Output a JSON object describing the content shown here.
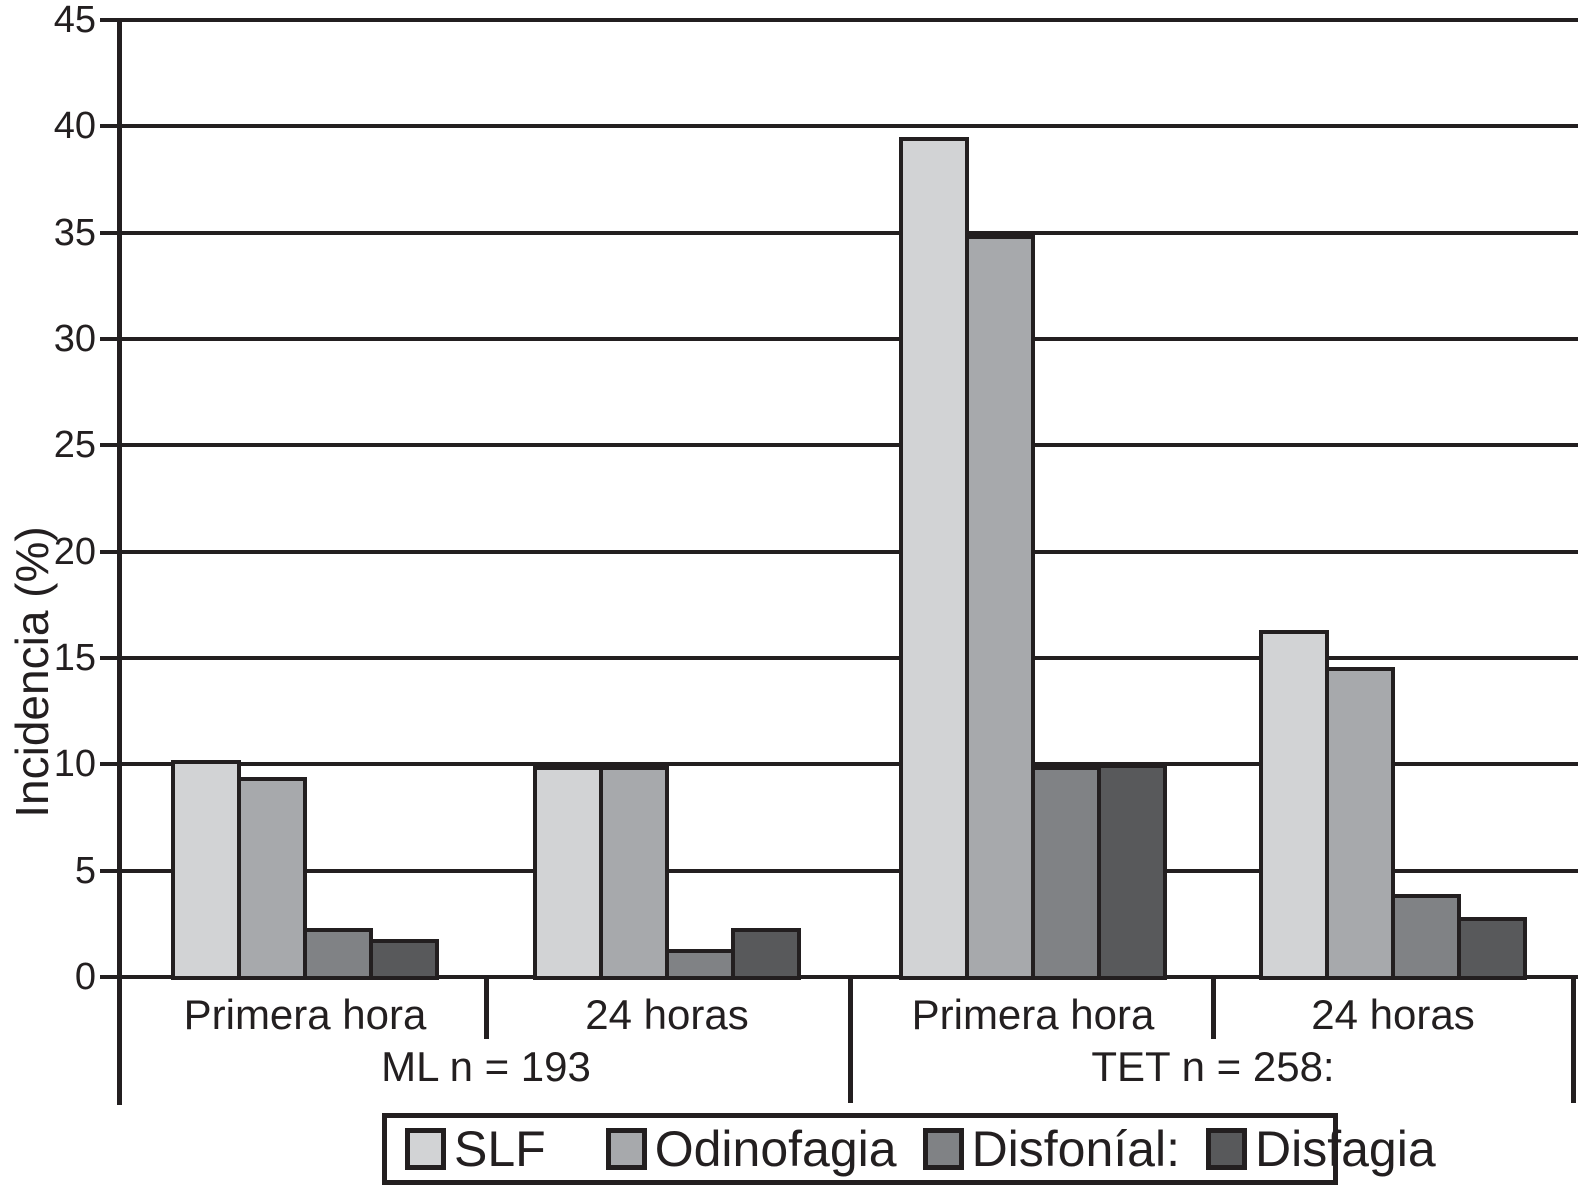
{
  "chart_data": {
    "type": "bar",
    "title": "",
    "ylabel": "Incidencia (%)",
    "xlabel": "",
    "ylim": [
      0,
      45
    ],
    "yticks": [
      0,
      5,
      10,
      15,
      20,
      25,
      30,
      35,
      40,
      45
    ],
    "grid": true,
    "legend_position": "bottom",
    "categories": [
      "Primera hora",
      "24 horas",
      "Primera hora",
      "24 horas"
    ],
    "group_labels": [
      {
        "label": "ML n = 193",
        "groups": [
          0,
          1
        ]
      },
      {
        "label": "TET n = 258:",
        "groups": [
          2,
          3
        ]
      }
    ],
    "series": [
      {
        "name": "SLF",
        "color": "#d2d3d5",
        "values": [
          10.2,
          9.9,
          39.5,
          16.3
        ]
      },
      {
        "name": "Odinofagia",
        "color": "#a7a9ac",
        "values": [
          9.4,
          9.9,
          34.9,
          14.6
        ]
      },
      {
        "name": "Disfoníal:",
        "color": "#808285",
        "values": [
          2.3,
          1.3,
          9.9,
          3.9
        ]
      },
      {
        "name": "Disfagia",
        "color": "#58595b",
        "values": [
          1.8,
          2.3,
          10.0,
          2.8
        ]
      }
    ]
  }
}
